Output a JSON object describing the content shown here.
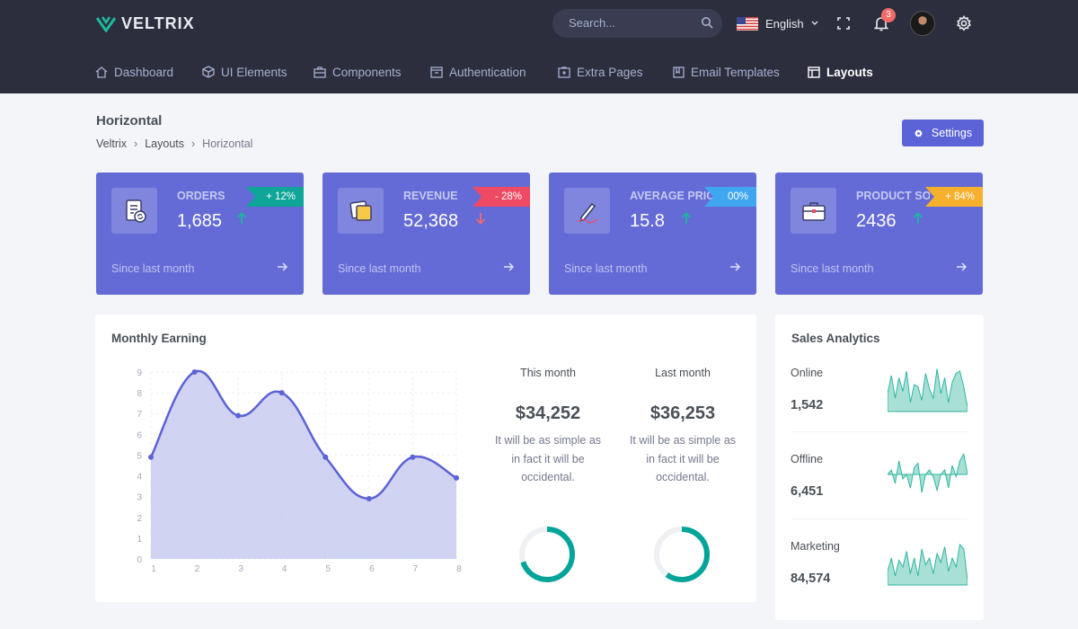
{
  "brand": {
    "name": "VELTRIX",
    "logo_icon": "chevron-v-logo",
    "accent": "#1abc9c"
  },
  "search": {
    "placeholder": "Search..."
  },
  "language": {
    "label": "English",
    "flag": "us-flag"
  },
  "notifications": {
    "count": "3"
  },
  "nav": [
    {
      "label": "Dashboard",
      "icon": "home-icon",
      "active": false
    },
    {
      "label": "UI Elements",
      "icon": "cube-icon",
      "active": false
    },
    {
      "label": "Components",
      "icon": "briefcase-icon",
      "active": false
    },
    {
      "label": "Authentication",
      "icon": "inbox-icon",
      "active": false
    },
    {
      "label": "Extra Pages",
      "icon": "package-icon",
      "active": false
    },
    {
      "label": "Email Templates",
      "icon": "book-icon",
      "active": false
    },
    {
      "label": "Layouts",
      "icon": "layout-icon",
      "active": true
    }
  ],
  "page": {
    "title": "Horizontal",
    "breadcrumb": [
      "Veltrix",
      "Layouts",
      "Horizontal"
    ],
    "settings_label": "Settings"
  },
  "stats": [
    {
      "label": "ORDERS",
      "value": "1,685",
      "badge": "+ 12%",
      "badge_color": "#10a599",
      "trend": "up",
      "trend_color": "#1ab89c",
      "since": "Since last month",
      "icon": "orders-icon"
    },
    {
      "label": "REVENUE",
      "value": "52,368",
      "badge": "- 28%",
      "badge_color": "#ee4a64",
      "trend": "down",
      "trend_color": "#f46a6a",
      "since": "Since last month",
      "icon": "revenue-icon"
    },
    {
      "label": "AVERAGE PRICE",
      "value": "15.8",
      "badge": "00%",
      "badge_color": "#3fa6f0",
      "trend": "up",
      "trend_color": "#1ab89c",
      "since": "Since last month",
      "icon": "pencil-icon"
    },
    {
      "label": "PRODUCT SOLD",
      "value": "2436",
      "badge": "+ 84%",
      "badge_color": "#f6b02d",
      "trend": "up",
      "trend_color": "#1ab89c",
      "since": "Since last month",
      "icon": "briefcase-icon"
    }
  ],
  "earning": {
    "title": "Monthly Earning",
    "this_month": {
      "label": "This month",
      "value": "$34,252",
      "desc": [
        "It will be as simple as",
        "in fact it will be",
        "occidental."
      ],
      "progress": 0.7
    },
    "last_month": {
      "label": "Last month",
      "value": "$36,253",
      "desc": [
        "It will be as simple as",
        "in fact it will be",
        "occidental."
      ],
      "progress": 0.6
    }
  },
  "chart_data": {
    "type": "area",
    "x": [
      1,
      2,
      3,
      4,
      5,
      6,
      7,
      8
    ],
    "series": [
      {
        "values": [
          4.9,
          9.0,
          6.9,
          8.0,
          4.9,
          2.9,
          4.9,
          3.9
        ]
      }
    ],
    "xlim": [
      1,
      8
    ],
    "ylim": [
      0,
      9
    ],
    "yticks": [
      0,
      1,
      2,
      3,
      4,
      5,
      6,
      7,
      8,
      9
    ],
    "xticks": [
      1,
      2,
      3,
      4,
      5,
      6,
      7,
      8
    ],
    "grid": true,
    "line_color": "#5b63d6",
    "fill_color": "#c8cbf0"
  },
  "analytics": {
    "title": "Sales Analytics",
    "rows": [
      {
        "label": "Online",
        "value": "1,542",
        "spark": [
          0.4,
          0.8,
          0.3,
          0.75,
          0.45,
          0.9,
          0.2,
          0.6,
          0.55,
          0.25,
          0.85,
          0.5,
          0.3,
          0.95,
          0.4,
          0.75,
          0.2,
          0.65,
          0.85,
          0.9,
          0.55,
          0.1
        ]
      },
      {
        "label": "Offline",
        "value": "6,451",
        "spark": [
          0.5,
          0.6,
          0.3,
          0.8,
          0.4,
          0.5,
          0.2,
          0.65,
          0.75,
          0.1,
          0.5,
          0.6,
          0.45,
          0.15,
          0.5,
          0.6,
          0.2,
          0.7,
          0.45,
          0.8,
          0.95,
          0.5
        ]
      },
      {
        "label": "Marketing",
        "value": "84,574",
        "spark": [
          0.3,
          0.6,
          0.2,
          0.55,
          0.4,
          0.75,
          0.25,
          0.6,
          0.2,
          0.8,
          0.45,
          0.6,
          0.25,
          0.7,
          0.5,
          0.85,
          0.3,
          0.6,
          0.4,
          0.9,
          0.8,
          0.1
        ]
      }
    ],
    "spark_color": "#2fb5a0"
  }
}
